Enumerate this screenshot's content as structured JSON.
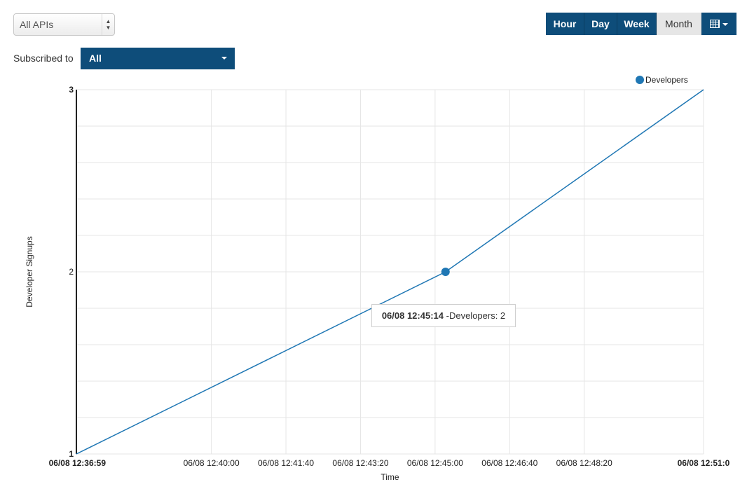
{
  "api_filter": {
    "selected": "All APIs"
  },
  "subscription_filter": {
    "label": "Subscribed to",
    "selected": "All"
  },
  "time_range": {
    "buttons": [
      "Hour",
      "Day",
      "Week",
      "Month"
    ],
    "active": "Month",
    "calendar_icon": "calendar-icon"
  },
  "colors": {
    "series": "#1f77b4",
    "accent": "#0e4d7a",
    "grid": "#e5e5e5"
  },
  "tooltip": {
    "time": "06/08 12:45:14",
    "text": "-Developers: 2"
  },
  "chart_data": {
    "type": "line",
    "title": "",
    "xlabel": "Time",
    "ylabel": "Developer Signups",
    "x_ticks": [
      "06/08 12:36:59",
      "06/08 12:40:00",
      "06/08 12:41:40",
      "06/08 12:43:20",
      "06/08 12:45:00",
      "06/08 12:46:40",
      "06/08 12:48:20",
      "06/08 12:51:0"
    ],
    "y_ticks": [
      "1",
      "2",
      "3"
    ],
    "ylim": [
      1,
      3
    ],
    "grid": true,
    "legend_position": "top-right",
    "series": [
      {
        "name": "Developers",
        "x": [
          "06/08 12:36:59",
          "06/08 12:45:14",
          "06/08 12:51:00"
        ],
        "values": [
          1,
          2,
          3
        ]
      }
    ]
  }
}
